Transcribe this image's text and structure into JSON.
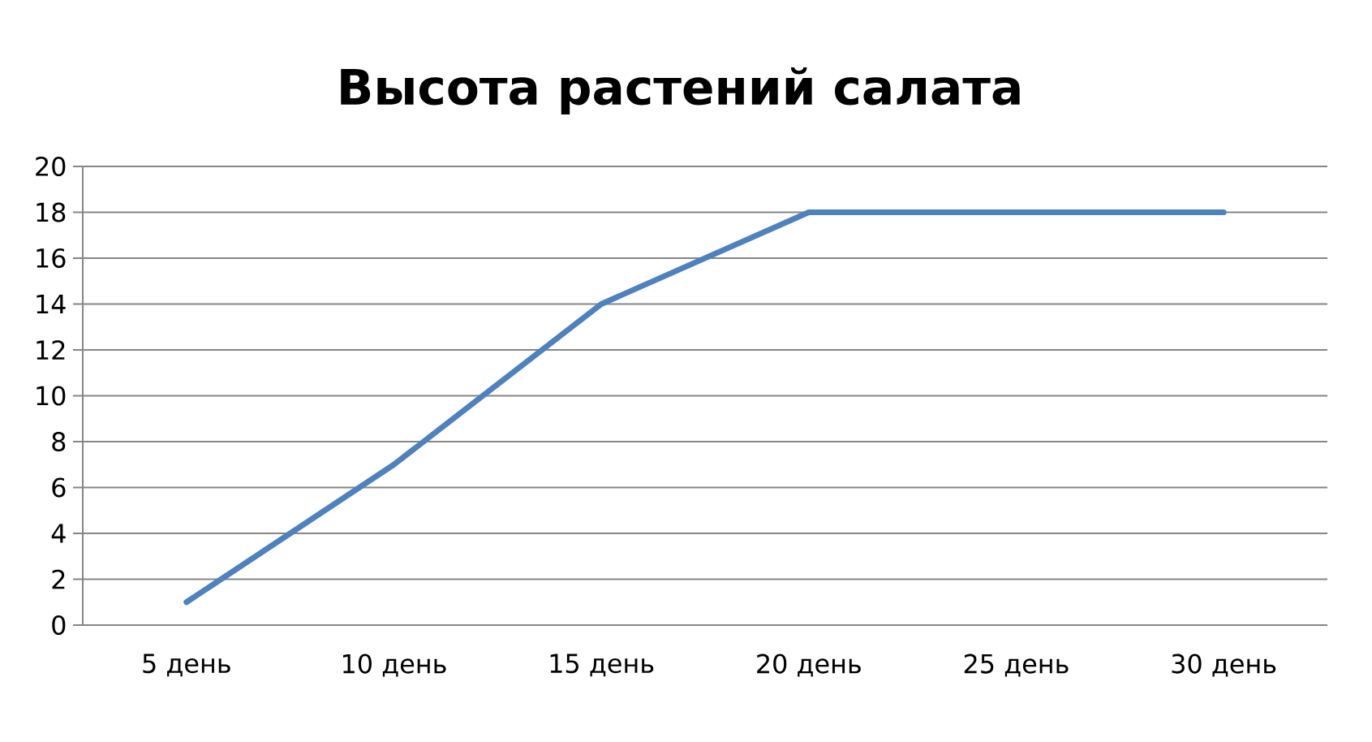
{
  "chart_data": {
    "type": "line",
    "title": "Высота растений салата",
    "categories": [
      "5 день",
      "10 день",
      "15 день",
      "20 день",
      "25 день",
      "30 день"
    ],
    "values": [
      1,
      7,
      14,
      18,
      18,
      18
    ],
    "color": "#4f81bd",
    "ylim": [
      0,
      20
    ],
    "yticks": [
      0,
      2,
      4,
      6,
      8,
      10,
      12,
      14,
      16,
      18,
      20
    ],
    "grid": "y"
  }
}
